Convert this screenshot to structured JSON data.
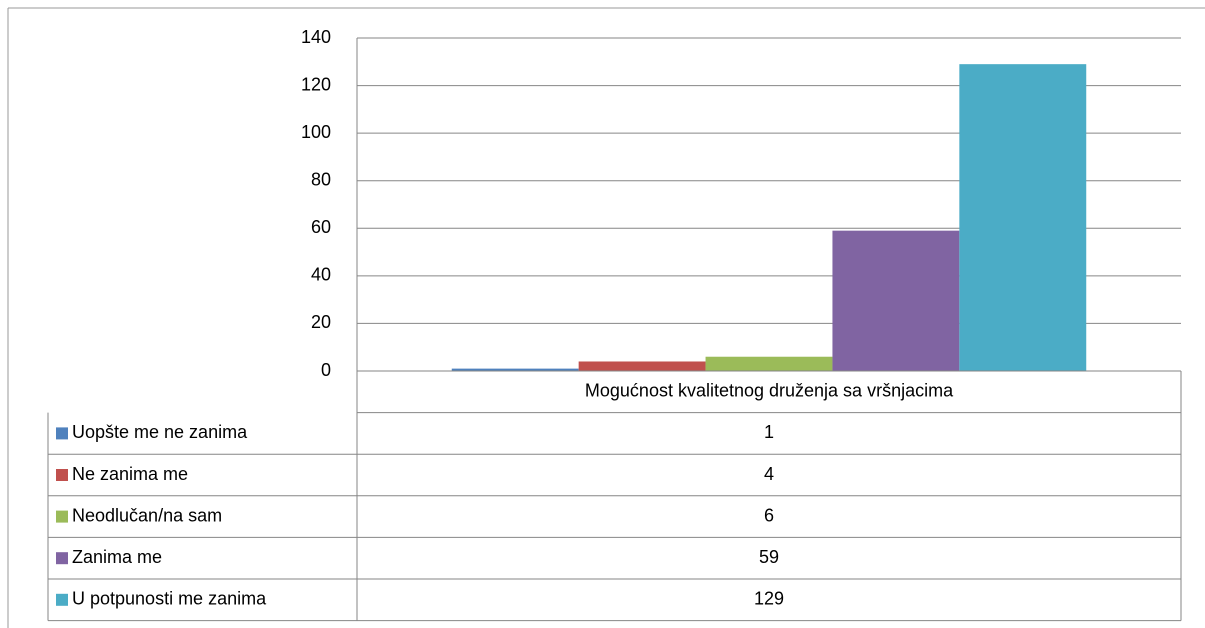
{
  "chart_data": {
    "type": "bar",
    "categories": [
      "Mogućnost kvalitetnog druženja sa vršnjacima"
    ],
    "series": [
      {
        "name": "Uopšte me ne zanima",
        "color": "#4f81bd",
        "values": [
          1
        ]
      },
      {
        "name": "Ne zanima me",
        "color": "#c0504d",
        "values": [
          4
        ]
      },
      {
        "name": "Neodlučan/na sam",
        "color": "#9bbb59",
        "values": [
          6
        ]
      },
      {
        "name": "Zanima me",
        "color": "#8064a2",
        "values": [
          59
        ]
      },
      {
        "name": "U potpunosti me zanima",
        "color": "#4bacc6",
        "values": [
          129
        ]
      }
    ],
    "ylim": [
      0,
      140
    ],
    "yticks": [
      0,
      20,
      40,
      60,
      80,
      100,
      120,
      140
    ],
    "grid": true
  }
}
